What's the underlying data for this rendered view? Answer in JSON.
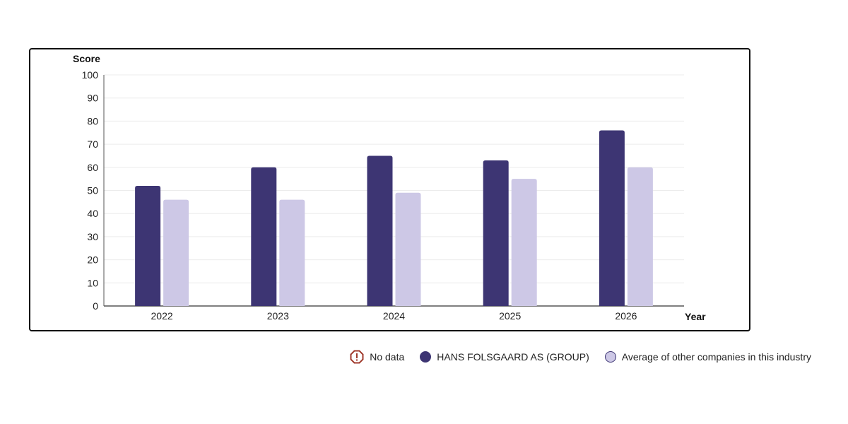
{
  "chart_data": {
    "type": "bar",
    "ylabel": "Score",
    "xlabel": "Year",
    "categories": [
      "2022",
      "2023",
      "2024",
      "2025",
      "2026"
    ],
    "ylim": [
      0,
      100
    ],
    "yticks": [
      0,
      10,
      20,
      30,
      40,
      50,
      60,
      70,
      80,
      90,
      100
    ],
    "grid": true,
    "legend_position": "bottom-right",
    "series": [
      {
        "name": "HANS FOLSGAARD AS (GROUP)",
        "values": [
          52,
          60,
          65,
          63,
          76
        ],
        "color": "#3d3573"
      },
      {
        "name": "Average of other companies in this industry",
        "values": [
          46,
          46,
          49,
          55,
          60
        ],
        "color": "#cdc8e6"
      }
    ]
  },
  "legend": {
    "no_data_label": "No data",
    "no_data_color": "#a03a2c",
    "no_data_icon": "warning-circle-icon"
  }
}
